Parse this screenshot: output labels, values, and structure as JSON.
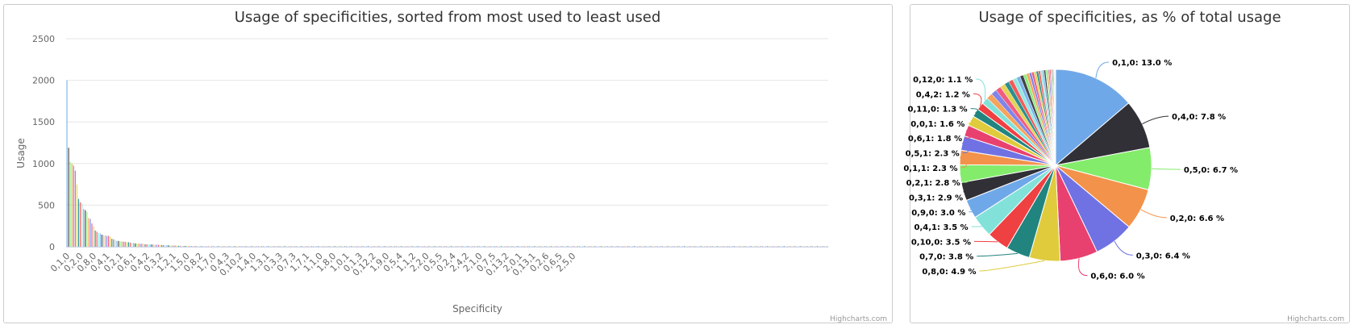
{
  "chart_data": [
    {
      "type": "bar",
      "title": "Usage of specificities, sorted from most used to least used",
      "xlabel": "Specificity",
      "ylabel": "Usage",
      "ylim": [
        0,
        2500
      ],
      "yticks": [
        0,
        500,
        1000,
        1500,
        2000,
        2500
      ],
      "grid": true,
      "legend": "none",
      "xtick_labels": [
        "0,1,0",
        "0,2,0",
        "0,8,0",
        "0,4,1",
        "0,2,1",
        "0,6,1",
        "0,4,2",
        "0,3,2",
        "1,2,1",
        "1,5,0",
        "0,8,2",
        "1,7,0",
        "0,4,3",
        "0,10,2",
        "1,4,0",
        "1,3,1",
        "0,3,3",
        "0,7,3",
        "1,7,1",
        "1,1,0",
        "1,8,0",
        "1,0,1",
        "0,1,3",
        "0,12,2",
        "1,9,0",
        "0,5,4",
        "1,1,2",
        "2,2,0",
        "0,5,5",
        "0,2,4",
        "2,4,2",
        "2,1,0",
        "0,7,5",
        "0,13,2",
        "2,0,1",
        "0,13,1",
        "0,2,6",
        "0,6,5",
        "2,5,0"
      ],
      "values": [
        2000,
        1190,
        1020,
        1000,
        975,
        915,
        750,
        575,
        535,
        520,
        455,
        440,
        420,
        345,
        335,
        280,
        245,
        195,
        180,
        165,
        160,
        145,
        140,
        135,
        130,
        130,
        120,
        95,
        90,
        80,
        70,
        70,
        65,
        65,
        60,
        60,
        55,
        55,
        50,
        45,
        45,
        40,
        40,
        40,
        35,
        35,
        35,
        30,
        30,
        30,
        28,
        27,
        26,
        25,
        24,
        23,
        22,
        21,
        20,
        19,
        18,
        17,
        16,
        15,
        14,
        14,
        13,
        12,
        11,
        11,
        10,
        10,
        9,
        9,
        8,
        8,
        7,
        7,
        6,
        6,
        6,
        5,
        5,
        5,
        5,
        4,
        4,
        4,
        4,
        3,
        3,
        3,
        3,
        3,
        3,
        3,
        2,
        2,
        2,
        2,
        2,
        2,
        2,
        2,
        2,
        2,
        2,
        2,
        2,
        2,
        2,
        2,
        2,
        2,
        2,
        2,
        2,
        2,
        1,
        1,
        1,
        1,
        1,
        1,
        1,
        1,
        1,
        1,
        1,
        1,
        1,
        1,
        1,
        1,
        1,
        1,
        1,
        1,
        1,
        1,
        1,
        1,
        1,
        1,
        1,
        1,
        1,
        1,
        1,
        1,
        1,
        1,
        1,
        1,
        1,
        1,
        1,
        1,
        1,
        1,
        1,
        1,
        1,
        1,
        1,
        1,
        1,
        1,
        1,
        1,
        1,
        1,
        1,
        1,
        1,
        1,
        1,
        1,
        1,
        1,
        1,
        1,
        1,
        1,
        1,
        1,
        1,
        1,
        1,
        1,
        1,
        1,
        1,
        1,
        1,
        1,
        1,
        1,
        1,
        1,
        1,
        1,
        1,
        1,
        1,
        1,
        1,
        1,
        1,
        1,
        1,
        1,
        1,
        1,
        1,
        1,
        1,
        1,
        1,
        1,
        1,
        1,
        1,
        1,
        1,
        1,
        1,
        1,
        1,
        1,
        1,
        1,
        1,
        1,
        1,
        1,
        1,
        1,
        1,
        1,
        1,
        1,
        1,
        1,
        1,
        1,
        1,
        1,
        1,
        1,
        1,
        1,
        1,
        1,
        1,
        1,
        1,
        1,
        1,
        1,
        1,
        1,
        1,
        1,
        1,
        1,
        1,
        1,
        1,
        1,
        1,
        1,
        1,
        1,
        1,
        1,
        1,
        1,
        1,
        1,
        1,
        1,
        1,
        1,
        1,
        1,
        1,
        1,
        1,
        1,
        1,
        1,
        1,
        1,
        1,
        1,
        1,
        1,
        1,
        1,
        1,
        1,
        1,
        1,
        1,
        1,
        1,
        1,
        1,
        1,
        1,
        1,
        1,
        1,
        1,
        1,
        1,
        1,
        1,
        1,
        1,
        1,
        1,
        1,
        1,
        1,
        1,
        1,
        1,
        1,
        1,
        1,
        1,
        1,
        1,
        1,
        1,
        1,
        1,
        1,
        1,
        1,
        1,
        1,
        1,
        1,
        1,
        1,
        1,
        1,
        1,
        1,
        1,
        1,
        1,
        1,
        1,
        1,
        1,
        1,
        1,
        1,
        1,
        1,
        1,
        1,
        1,
        1,
        1,
        1,
        1,
        1,
        1,
        1,
        1,
        1,
        1,
        1,
        1,
        1,
        1,
        1,
        1,
        1,
        1,
        1,
        1,
        1,
        1,
        1,
        1,
        1,
        1,
        1,
        1,
        1,
        1,
        1,
        1,
        1,
        1,
        1,
        1,
        1,
        1,
        1,
        1,
        1,
        1,
        1,
        1,
        1,
        1,
        1,
        1,
        1,
        1,
        1,
        1,
        1,
        1,
        1,
        1,
        1,
        1,
        1,
        1,
        1,
        1,
        1,
        1,
        1,
        1,
        1,
        1,
        1,
        1,
        1,
        1,
        1,
        1,
        1,
        1,
        1,
        1,
        1,
        1,
        1,
        1,
        1,
        1,
        1,
        1,
        1,
        1,
        1,
        1,
        1
      ],
      "credits": "Highcharts.com"
    },
    {
      "type": "pie",
      "title": "Usage of specificities, as % of total usage",
      "legend": "none",
      "slices": [
        {
          "label": "0,1,0: 13.0 %",
          "value": 13.0,
          "labeled": true
        },
        {
          "label": "0,4,0: 7.8 %",
          "value": 7.8,
          "labeled": true
        },
        {
          "label": "0,5,0: 6.7 %",
          "value": 6.7,
          "labeled": true
        },
        {
          "label": "0,2,0: 6.6 %",
          "value": 6.6,
          "labeled": true
        },
        {
          "label": "0,3,0: 6.4 %",
          "value": 6.4,
          "labeled": true
        },
        {
          "label": "0,6,0: 6.0 %",
          "value": 6.0,
          "labeled": true
        },
        {
          "label": "0,8,0: 4.9 %",
          "value": 4.9,
          "labeled": true
        },
        {
          "label": "0,7,0: 3.8 %",
          "value": 3.8,
          "labeled": true
        },
        {
          "label": "0,10,0: 3.5 %",
          "value": 3.5,
          "labeled": true
        },
        {
          "label": "0,4,1: 3.5 %",
          "value": 3.5,
          "labeled": true
        },
        {
          "label": "0,9,0: 3.0 %",
          "value": 3.0,
          "labeled": true
        },
        {
          "label": "0,3,1: 2.9 %",
          "value": 2.9,
          "labeled": true
        },
        {
          "label": "0,2,1: 2.8 %",
          "value": 2.8,
          "labeled": true
        },
        {
          "label": "0,1,1: 2.3 %",
          "value": 2.3,
          "labeled": true
        },
        {
          "label": "0,5,1: 2.3 %",
          "value": 2.3,
          "labeled": true
        },
        {
          "label": "0,6,1: 1.8 %",
          "value": 1.8,
          "labeled": true
        },
        {
          "label": "0,0,1: 1.6 %",
          "value": 1.6,
          "labeled": true
        },
        {
          "label": "0,11,0: 1.3 %",
          "value": 1.3,
          "labeled": true
        },
        {
          "label": "0,4,2: 1.2 %",
          "value": 1.2,
          "labeled": true
        },
        {
          "label": "0,12,0: 1.1 %",
          "value": 1.1,
          "labeled": true
        }
      ],
      "other_slices": [
        0.95,
        0.9,
        0.85,
        0.8,
        0.75,
        0.7,
        0.65,
        0.6,
        0.55,
        0.5,
        0.45,
        0.4,
        0.38,
        0.36,
        0.34,
        0.32,
        0.3,
        0.28,
        0.26,
        0.24,
        0.22,
        0.2,
        0.18,
        0.16,
        0.14,
        0.12,
        0.1,
        0.08,
        0.06,
        0.04,
        0.03,
        0.02
      ],
      "credits": "Highcharts.com"
    }
  ],
  "colors": [
    "#7cb5ec",
    "#434348",
    "#90ed7d",
    "#f7a35c",
    "#8085e9",
    "#f15c80",
    "#e4d354",
    "#2b908f",
    "#f45b5b",
    "#91e8e1"
  ],
  "pie_colors": [
    "#6fa8e8",
    "#303036",
    "#83ec6b",
    "#f3924a",
    "#7072e3",
    "#e9416f",
    "#e0cb3d",
    "#22847f",
    "#ef4042",
    "#82e2da"
  ]
}
